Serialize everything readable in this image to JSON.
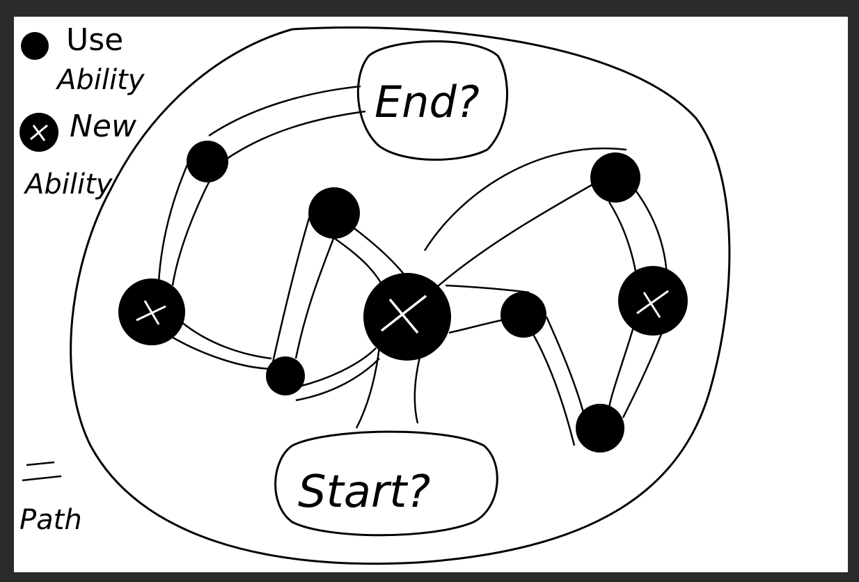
{
  "legend": {
    "use_ability_line1": "Use",
    "use_ability_line2": "Ability",
    "new_ability_line1": "New",
    "new_ability_line2": "Ability",
    "path_label": "Path"
  },
  "labels": {
    "end": "End?",
    "start": "Start?"
  },
  "nodes": [
    {
      "id": "n1",
      "type": "use"
    },
    {
      "id": "n2",
      "type": "new"
    },
    {
      "id": "n3",
      "type": "use"
    },
    {
      "id": "n4",
      "type": "use"
    },
    {
      "id": "n5",
      "type": "new"
    },
    {
      "id": "n6",
      "type": "use"
    },
    {
      "id": "n7",
      "type": "use"
    },
    {
      "id": "n8",
      "type": "new"
    },
    {
      "id": "n9",
      "type": "use"
    }
  ],
  "colors": {
    "background": "#2b2b2b",
    "canvas": "#ffffff",
    "ink": "#000000"
  }
}
